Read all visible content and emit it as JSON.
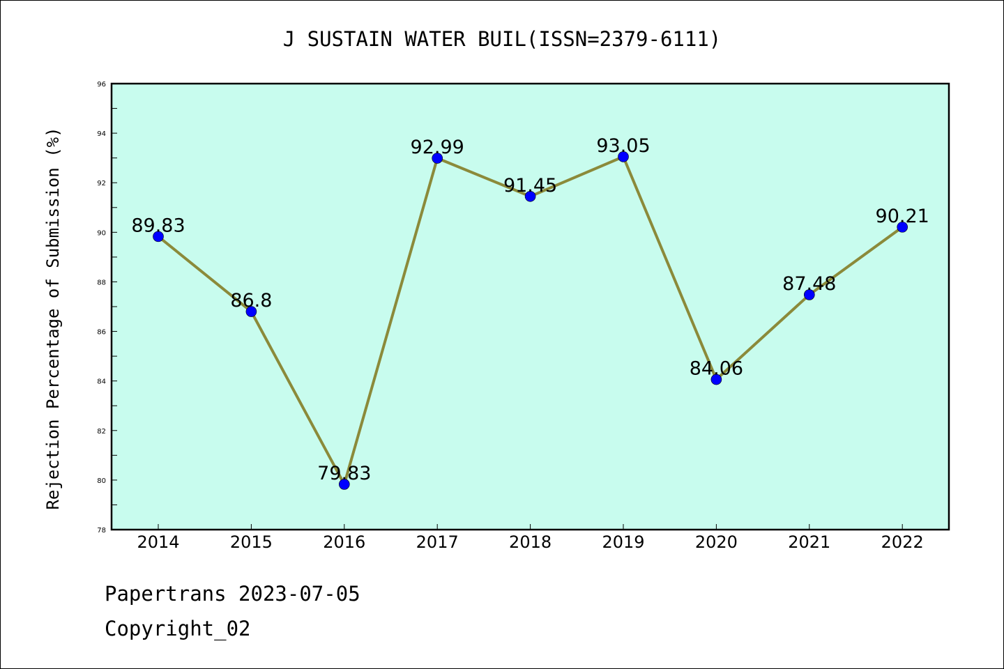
{
  "chart_data": {
    "type": "line",
    "title": "J SUSTAIN WATER BUIL(ISSN=2379-6111)",
    "xlabel": "",
    "ylabel": "Rejection Percentage of Submission (%)",
    "categories": [
      "2014",
      "2015",
      "2016",
      "2017",
      "2018",
      "2019",
      "2020",
      "2021",
      "2022"
    ],
    "series": [
      {
        "values": [
          89.83,
          86.8,
          79.83,
          92.99,
          91.45,
          93.05,
          84.06,
          87.48,
          90.21
        ],
        "labels": [
          "89.83",
          "86.8",
          "79.83",
          "92.99",
          "91.45",
          "93.05",
          "84.06",
          "87.48",
          "90.21"
        ]
      }
    ],
    "ylim": [
      78,
      96
    ],
    "yticks": [
      78,
      80,
      82,
      84,
      86,
      88,
      90,
      92,
      94,
      96
    ],
    "grid": false,
    "legend": "none",
    "colors": {
      "plot_background": "#c8fcee",
      "line": "#8b8a3a",
      "marker": "#0000ff",
      "axes": "#000000"
    }
  },
  "footer": {
    "line1": "Papertrans 2023-07-05",
    "line2": "Copyright_02"
  }
}
